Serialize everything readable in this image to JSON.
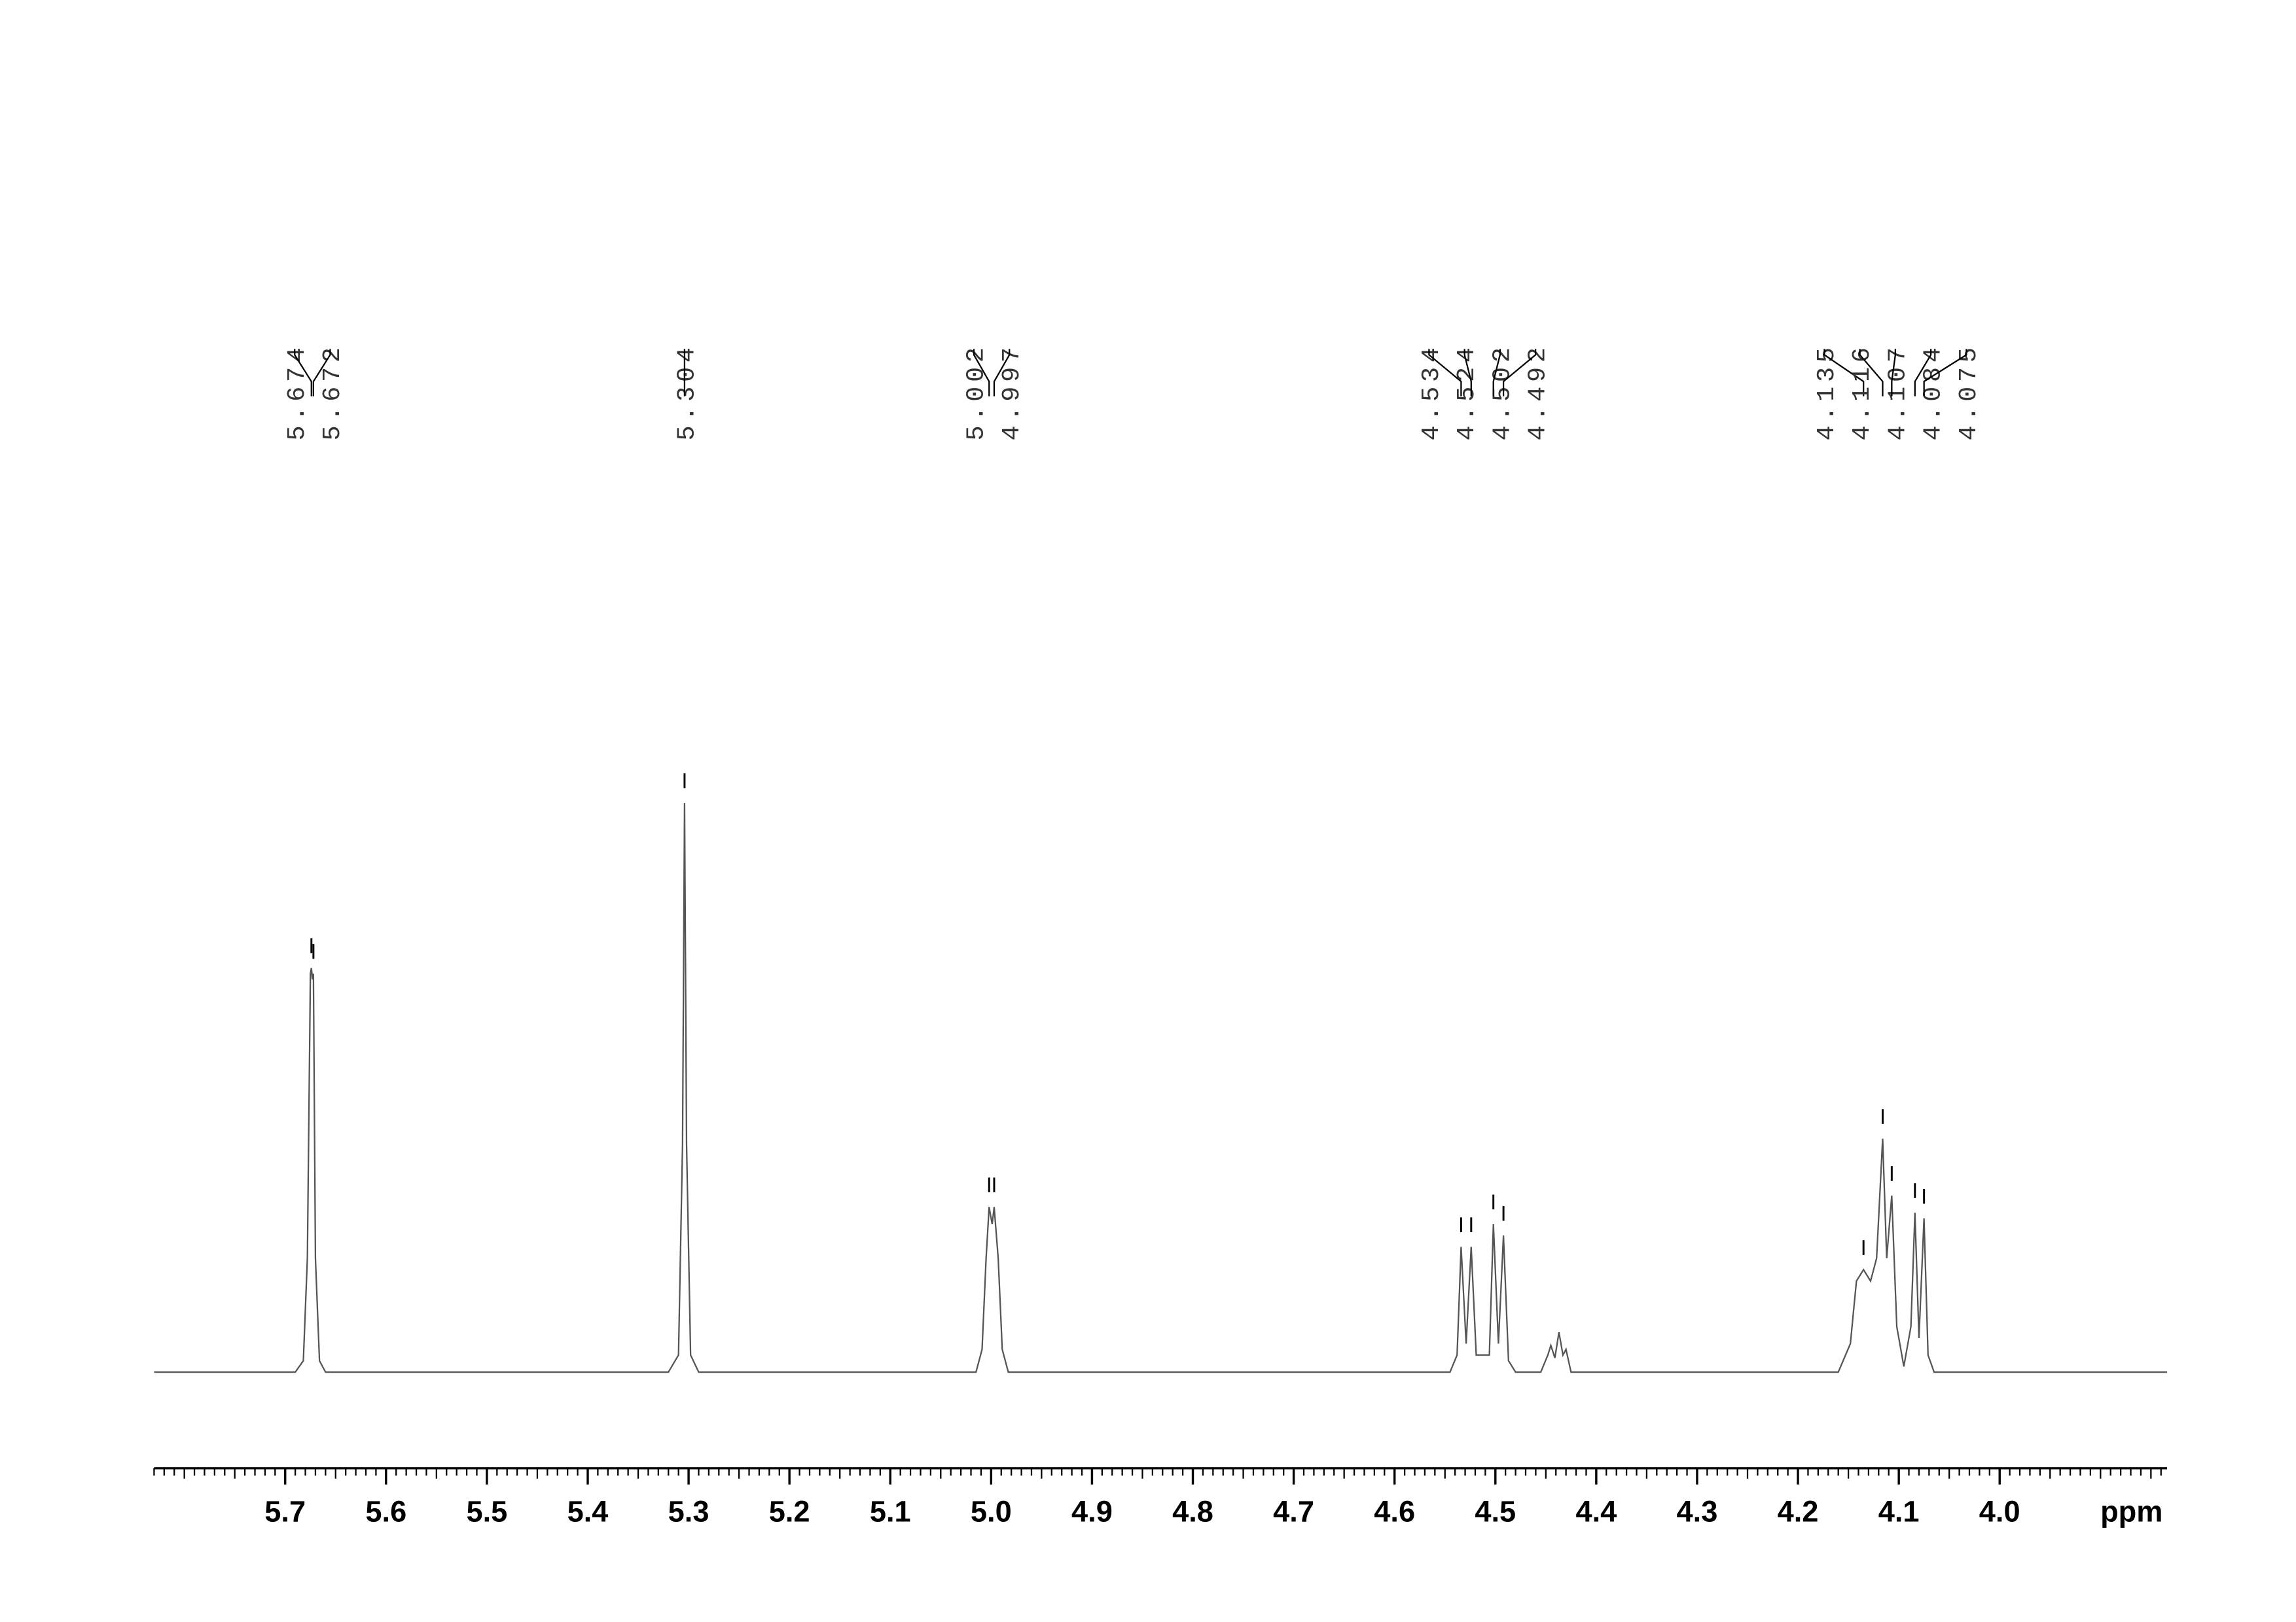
{
  "chart_data": {
    "type": "nmr",
    "x_label": "ppm",
    "xlim": [
      5.83,
      3.834
    ],
    "ylim": [
      0,
      100
    ],
    "xticks": [
      5.7,
      5.6,
      5.5,
      5.4,
      5.3,
      5.2,
      5.1,
      {
        "value": 5,
        "label": "5.0"
      },
      4.9,
      4.8,
      4.7,
      4.6,
      4.5,
      4.4,
      4.3,
      4.2,
      4.1,
      {
        "value": 4,
        "label": "4.0"
      }
    ],
    "minor_tick_interval": 0.01,
    "color": "#555555",
    "x": [
      5.83,
      5.69,
      5.682,
      5.678,
      5.675,
      5.674,
      5.673,
      5.672,
      5.67,
      5.666,
      5.66,
      5.32,
      5.31,
      5.306,
      5.304,
      5.302,
      5.298,
      5.29,
      5.015,
      5.009,
      5.005,
      5.002,
      4.999,
      4.997,
      4.993,
      4.989,
      4.983,
      4.545,
      4.538,
      4.534,
      4.529,
      4.524,
      4.519,
      4.506,
      4.502,
      4.497,
      4.492,
      4.487,
      4.48,
      4.455,
      4.448,
      4.445,
      4.441,
      4.437,
      4.433,
      4.43,
      4.425,
      4.16,
      4.148,
      4.142,
      4.135,
      4.128,
      4.122,
      4.116,
      4.112,
      4.107,
      4.102,
      4.095,
      4.088,
      4.084,
      4.08,
      4.075,
      4.071,
      4.065,
      3.834
    ],
    "y": [
      0,
      0,
      2,
      20,
      70,
      71,
      69,
      70,
      20,
      2,
      0,
      0,
      3,
      40,
      100,
      40,
      3,
      0,
      0,
      4,
      20,
      29,
      26,
      29,
      20,
      4,
      0,
      0,
      3,
      22,
      5,
      22,
      3,
      3,
      26,
      5,
      24,
      2,
      0,
      0,
      3,
      4.7,
      2.5,
      7,
      3,
      4,
      0,
      0,
      5,
      16,
      18,
      16,
      20,
      41,
      20,
      31,
      8,
      1,
      8,
      28,
      6,
      27,
      3,
      0,
      0
    ],
    "peak_labels": [
      5.674,
      5.672,
      5.304,
      5.002,
      4.997,
      4.534,
      4.524,
      4.502,
      4.492,
      4.135,
      4.116,
      4.107,
      4.084,
      4.075
    ]
  }
}
